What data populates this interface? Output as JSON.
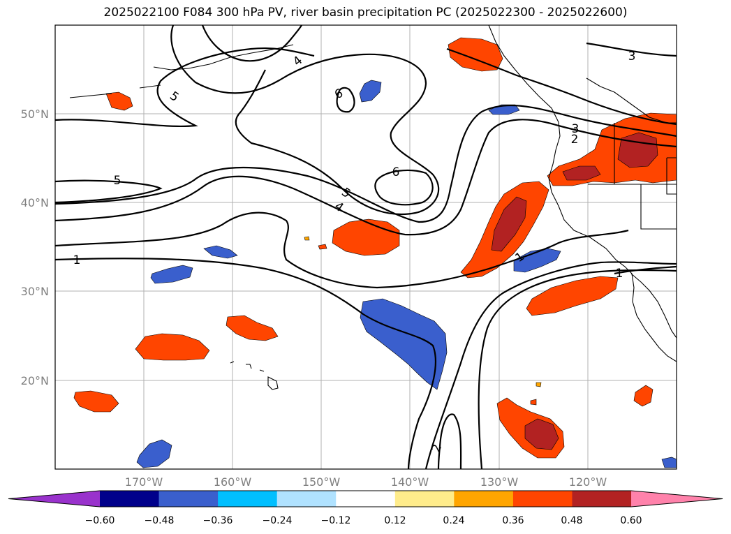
{
  "title": "2025022100 F084 300 hPa PV, river basin precipitation PC (2025022300 - 2025022600)",
  "map": {
    "lon_ticks": [
      "170°W",
      "160°W",
      "150°W",
      "140°W",
      "130°W",
      "120°W"
    ],
    "lat_ticks": [
      "50°N",
      "40°N",
      "30°N",
      "20°N"
    ],
    "pv_contour_labels": [
      "1",
      "2",
      "3",
      "4",
      "5",
      "6"
    ],
    "contour_label_instances": [
      "5",
      "5",
      "6",
      "6",
      "5",
      "4",
      "3",
      "2",
      "3",
      "4",
      "1",
      "1",
      "1",
      "2"
    ]
  },
  "colorbar": {
    "ticks": [
      "−0.60",
      "−0.48",
      "−0.36",
      "−0.24",
      "−0.12",
      "0.12",
      "0.24",
      "0.36",
      "0.48",
      "0.60"
    ],
    "bins": [
      {
        "from": null,
        "to": -0.6,
        "color": "#9932cc"
      },
      {
        "from": -0.6,
        "to": -0.48,
        "color": "#00008b"
      },
      {
        "from": -0.48,
        "to": -0.36,
        "color": "#3a5fcd"
      },
      {
        "from": -0.36,
        "to": -0.24,
        "color": "#00bfff"
      },
      {
        "from": -0.24,
        "to": -0.12,
        "color": "#b0e2ff"
      },
      {
        "from": -0.12,
        "to": 0.12,
        "color": "#ffffff"
      },
      {
        "from": 0.12,
        "to": 0.24,
        "color": "#ffec8b"
      },
      {
        "from": 0.24,
        "to": 0.36,
        "color": "#ffa500"
      },
      {
        "from": 0.36,
        "to": 0.48,
        "color": "#ff4500"
      },
      {
        "from": 0.48,
        "to": 0.6,
        "color": "#b22222"
      },
      {
        "from": 0.6,
        "to": null,
        "color": "#ff82ab"
      }
    ]
  }
}
